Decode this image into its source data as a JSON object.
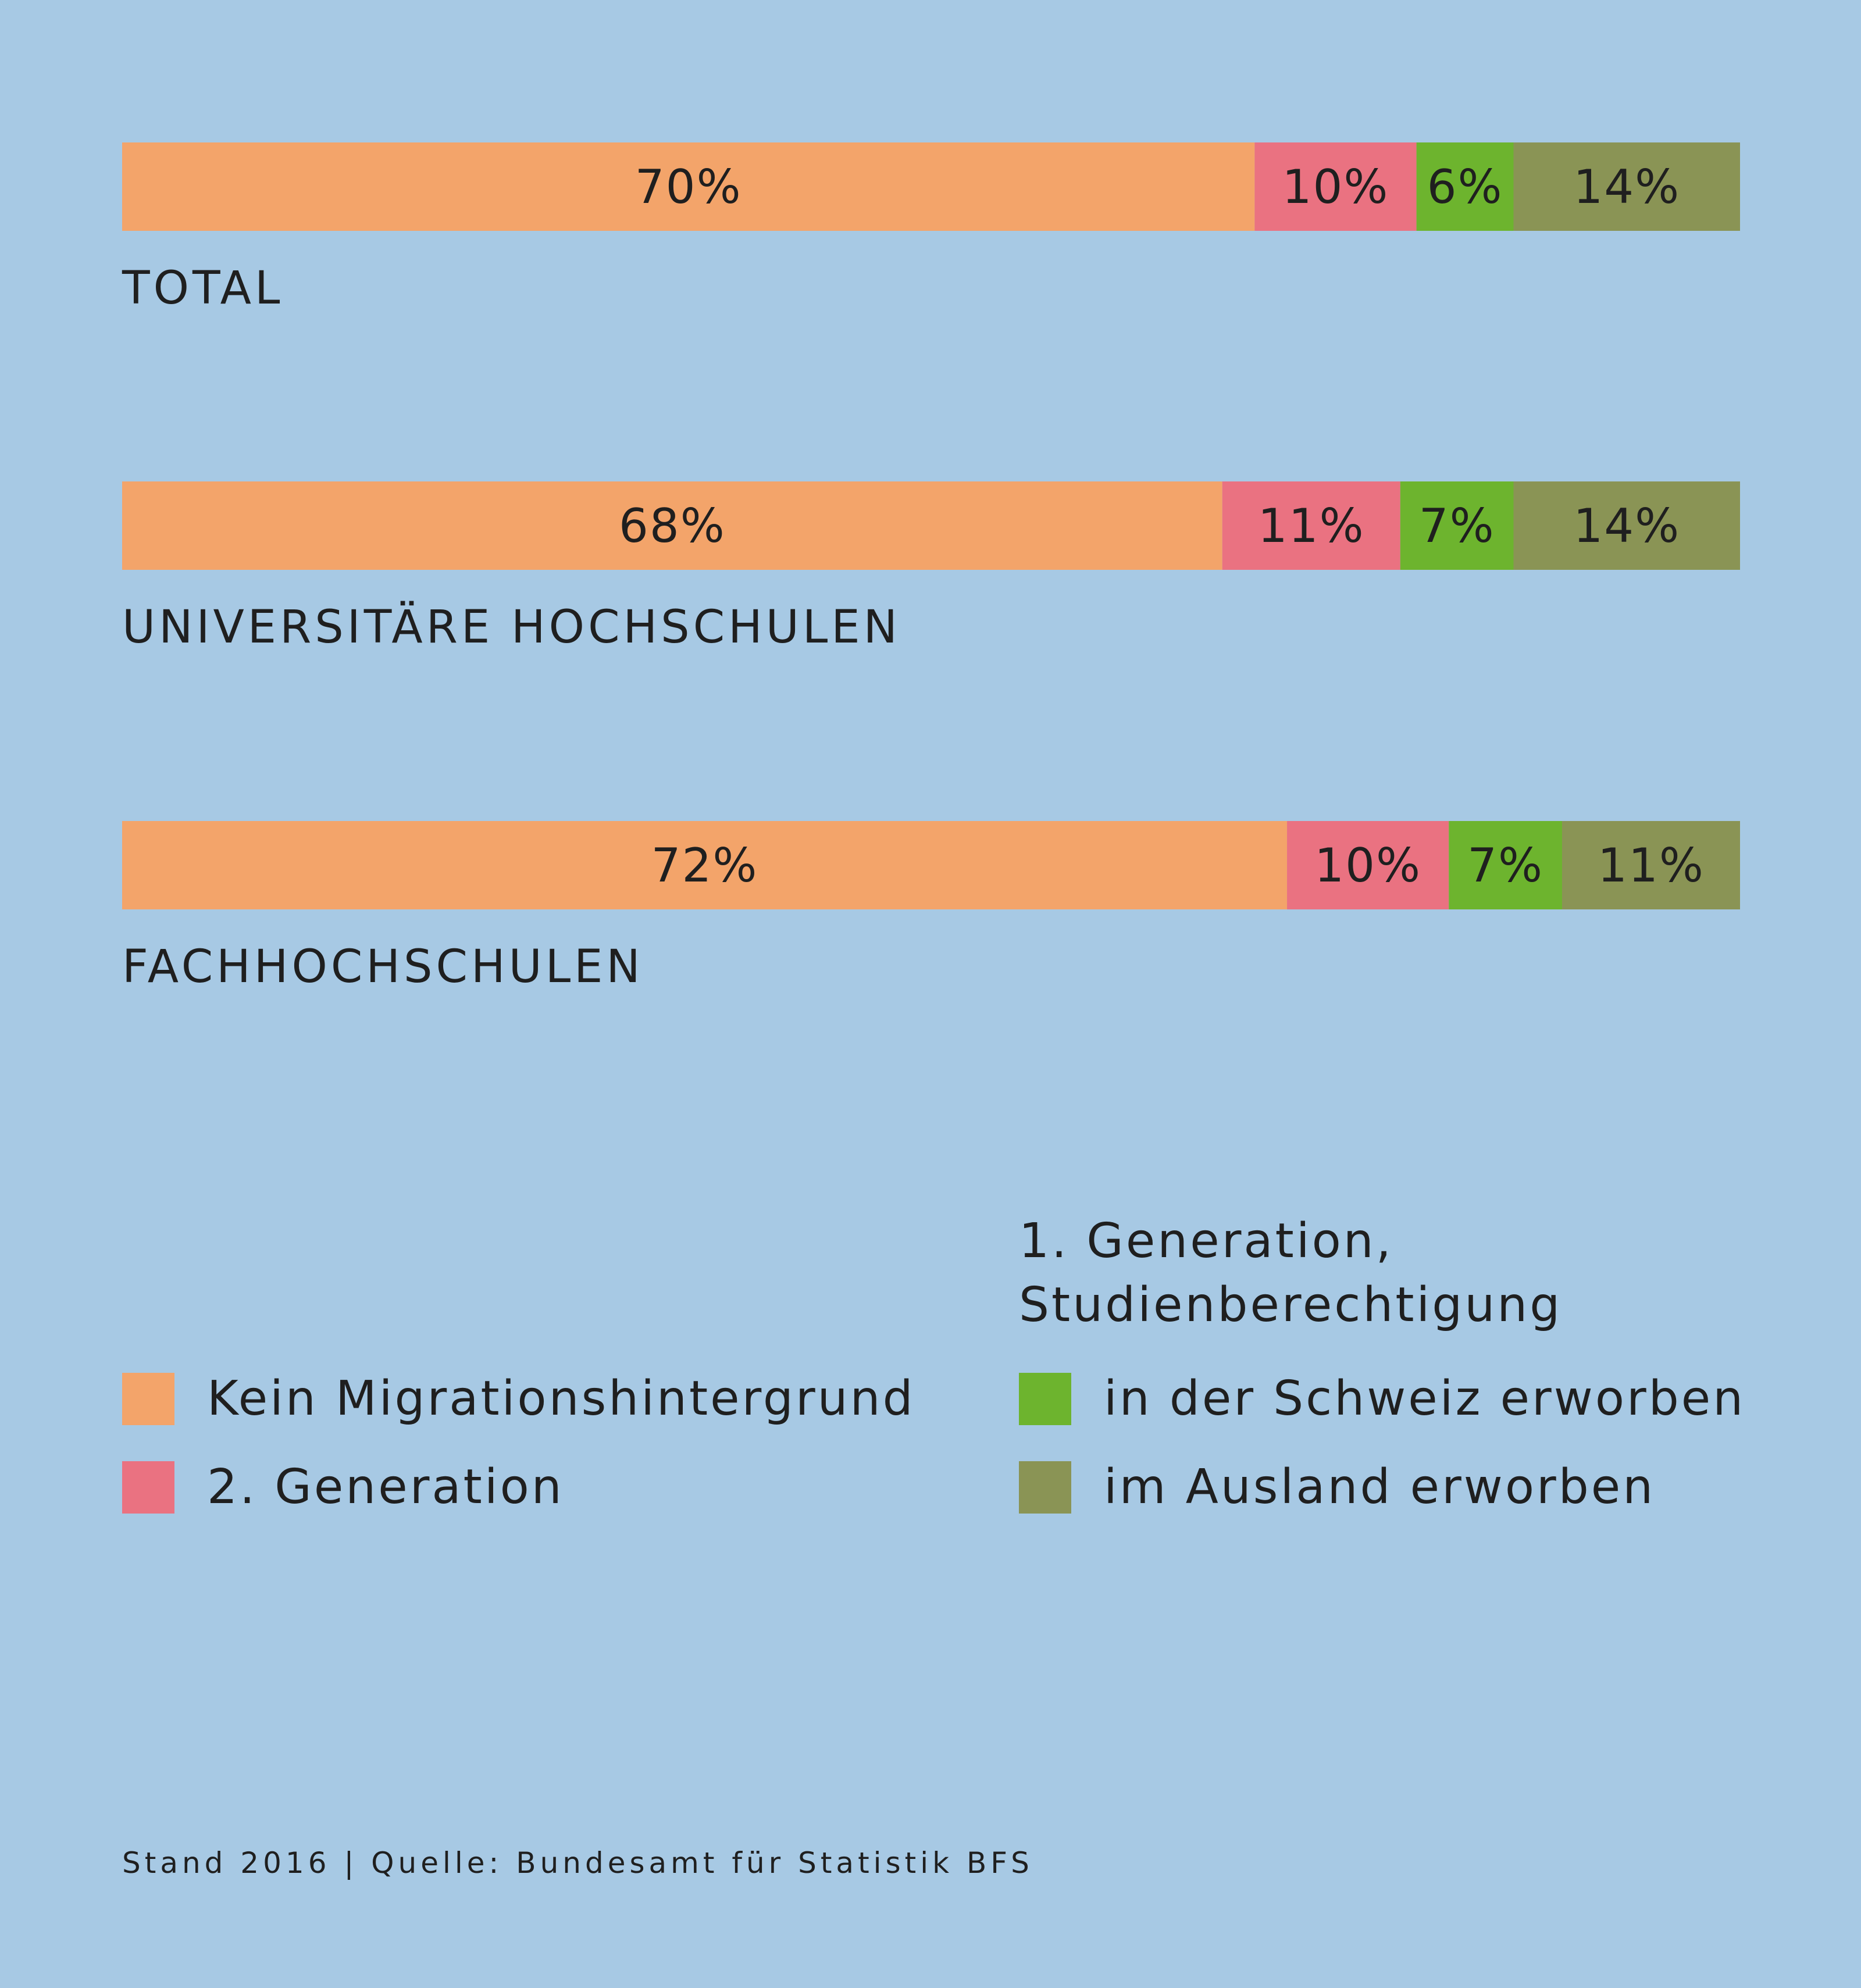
{
  "chart_data": {
    "type": "bar",
    "orientation": "horizontal",
    "stacked": true,
    "categories": [
      "TOTAL",
      "UNIVERSITÄRE HOCHSCHULEN",
      "FACHHOCHSCHULEN"
    ],
    "series": [
      {
        "name": "Kein Migrationshintergrund",
        "color": "#f3a46a",
        "values": [
          70,
          68,
          72
        ],
        "labels": [
          "70%",
          "68%",
          "72%"
        ]
      },
      {
        "name": "2. Generation",
        "color": "#ea7281",
        "values": [
          10,
          11,
          10
        ],
        "labels": [
          "10%",
          "11%",
          "10%"
        ]
      },
      {
        "name": "in der Schweiz erworben",
        "color": "#6db42e",
        "values": [
          6,
          7,
          7
        ],
        "labels": [
          "6%",
          "7%",
          "7%"
        ]
      },
      {
        "name": "im Ausland erworben",
        "color": "#8a9455",
        "values": [
          14,
          14,
          11
        ],
        "labels": [
          "14%",
          "14%",
          "11%"
        ]
      }
    ],
    "xlim": [
      0,
      100
    ],
    "unit": "%",
    "legend_position": "bottom"
  },
  "legend": {
    "heading_line1": "1. Generation,",
    "heading_line2": "Studienberechtigung",
    "items": [
      {
        "label": "Kein Migrationshintergrund",
        "color": "#f3a46a"
      },
      {
        "label": "2. Generation",
        "color": "#ea7281"
      },
      {
        "label": "in der Schweiz erworben",
        "color": "#6db42e"
      },
      {
        "label": "im Ausland erworben",
        "color": "#8a9455"
      }
    ]
  },
  "source": "Stand 2016 | Quelle: Bundesamt für Statistik BFS",
  "colors": {
    "background": "#a7c9e4",
    "text": "#1f1f1f"
  }
}
